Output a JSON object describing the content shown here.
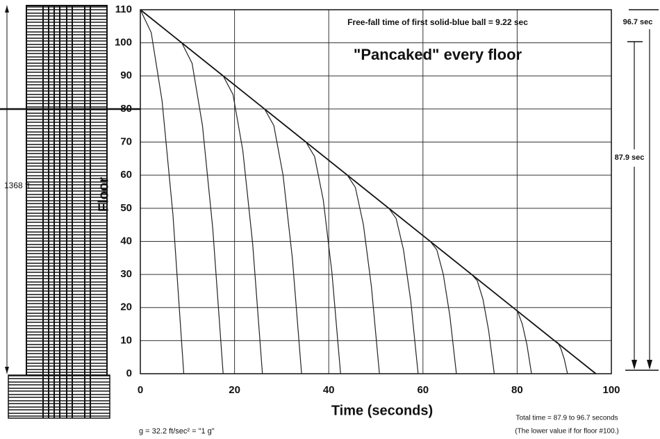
{
  "chart_data": {
    "type": "line",
    "title": "\"Pancaked\" every floor",
    "xlabel": "Time  (seconds)",
    "ylabel": "Floor",
    "xlim": [
      0,
      100
    ],
    "xticks": [
      0,
      20,
      40,
      60,
      80,
      100
    ],
    "ylim": [
      0,
      110
    ],
    "yticks": [
      0,
      10,
      20,
      30,
      40,
      50,
      60,
      70,
      80,
      90,
      100,
      110
    ],
    "grid": true,
    "annotations": [
      "Free-fall time of first solid-blue ball  =  9.22 sec",
      "96.7 sec",
      "87.9 sec",
      "g = 32.2 ft/sec² = \"1 g\"",
      "Total time = 87.9 to 96.7 seconds",
      "(The lower value if for floor #100.)",
      "1368 ft"
    ],
    "series": [
      {
        "color": "#111111",
        "x": [
          0,
          96.7
        ],
        "values": [
          110,
          0
        ]
      },
      {
        "color": "#222222",
        "x": [
          0,
          2.31,
          4.61,
          6.92,
          9.22
        ],
        "values": [
          110,
          103.1,
          82.5,
          48.1,
          0
        ]
      },
      {
        "color": "#222222",
        "x": [
          8.79,
          10.99,
          13.19,
          15.38,
          17.58
        ],
        "values": [
          100,
          93.8,
          75,
          43.8,
          0
        ]
      },
      {
        "color": "#222222",
        "x": [
          17.58,
          19.67,
          21.75,
          23.84,
          25.92
        ],
        "values": [
          90,
          84.4,
          67.5,
          39.4,
          0
        ]
      },
      {
        "color": "#222222",
        "x": [
          26.37,
          28.34,
          30.3,
          32.27,
          34.23
        ],
        "values": [
          80,
          75,
          60,
          35,
          0
        ]
      },
      {
        "color": "#222222",
        "x": [
          35.16,
          37.0,
          38.84,
          40.67,
          42.51
        ],
        "values": [
          70,
          65.6,
          52.5,
          30.6,
          0
        ]
      },
      {
        "color": "#222222",
        "x": [
          43.95,
          45.65,
          47.36,
          49.06,
          50.76
        ],
        "values": [
          60,
          56.3,
          45,
          26.3,
          0
        ]
      },
      {
        "color": "#222222",
        "x": [
          52.75,
          54.31,
          55.86,
          57.42,
          58.97
        ],
        "values": [
          50,
          46.9,
          37.5,
          21.9,
          0
        ]
      },
      {
        "color": "#222222",
        "x": [
          61.54,
          62.93,
          64.32,
          65.71,
          67.1
        ],
        "values": [
          40,
          37.5,
          30,
          17.5,
          0
        ]
      },
      {
        "color": "#222222",
        "x": [
          70.33,
          71.53,
          72.74,
          73.94,
          75.14
        ],
        "values": [
          30,
          28.1,
          22.5,
          13.1,
          0
        ]
      },
      {
        "color": "#222222",
        "x": [
          79.12,
          80.1,
          81.09,
          82.07,
          83.05
        ],
        "values": [
          20,
          18.8,
          15,
          8.8,
          0
        ]
      },
      {
        "color": "#222222",
        "x": [
          87.91,
          88.61,
          89.3,
          90.0,
          90.69
        ],
        "values": [
          10,
          9.4,
          7.5,
          4.4,
          0
        ]
      }
    ]
  }
}
